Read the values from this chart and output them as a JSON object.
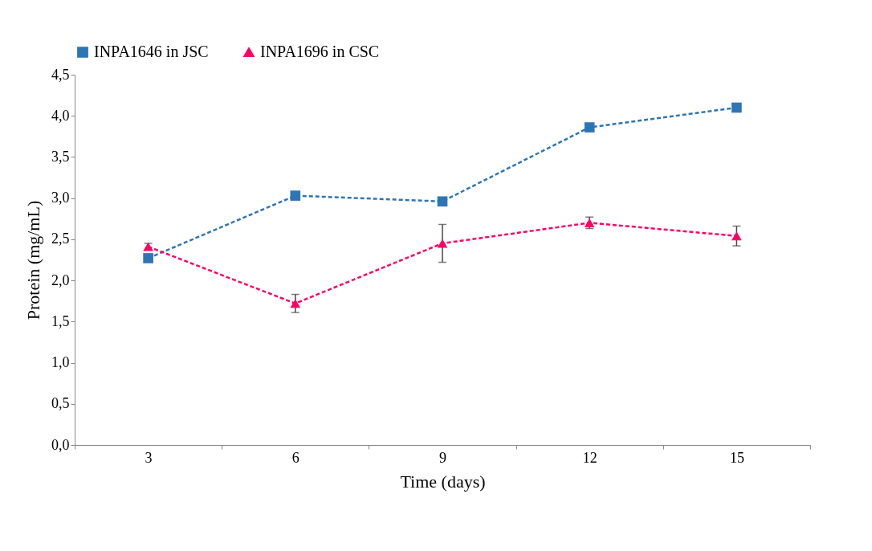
{
  "chart_data": {
    "type": "line",
    "xlabel": "Time (days)",
    "ylabel": "Protein (mg/mL)",
    "categories": [
      "3",
      "6",
      "9",
      "12",
      "15"
    ],
    "series": [
      {
        "name": "INPA1646 in JSC",
        "color": "#2e75b6",
        "marker": "square",
        "values": [
          2.27,
          3.03,
          2.96,
          3.86,
          4.1
        ]
      },
      {
        "name": "INPA1696 in CSC",
        "color": "#ff0066",
        "marker": "triangle",
        "values": [
          2.41,
          1.72,
          2.45,
          2.7,
          2.54
        ],
        "errors": [
          0.04,
          0.11,
          0.23,
          0.07,
          0.12
        ]
      }
    ],
    "ylim": [
      0,
      4.5
    ],
    "yticks": [
      {
        "value": 0,
        "label": "0,0"
      },
      {
        "value": 0.5,
        "label": "0,5"
      },
      {
        "value": 1,
        "label": "1,0"
      },
      {
        "value": 1.5,
        "label": "1,5"
      },
      {
        "value": 2,
        "label": "2,0"
      },
      {
        "value": 2.5,
        "label": "2,5"
      },
      {
        "value": 3,
        "label": "3,0"
      },
      {
        "value": 3.5,
        "label": "3,5"
      },
      {
        "value": 4,
        "label": "4,0"
      },
      {
        "value": 4.5,
        "label": "4,5"
      }
    ],
    "grid": false,
    "legend": "top",
    "line_style": "dashed"
  }
}
